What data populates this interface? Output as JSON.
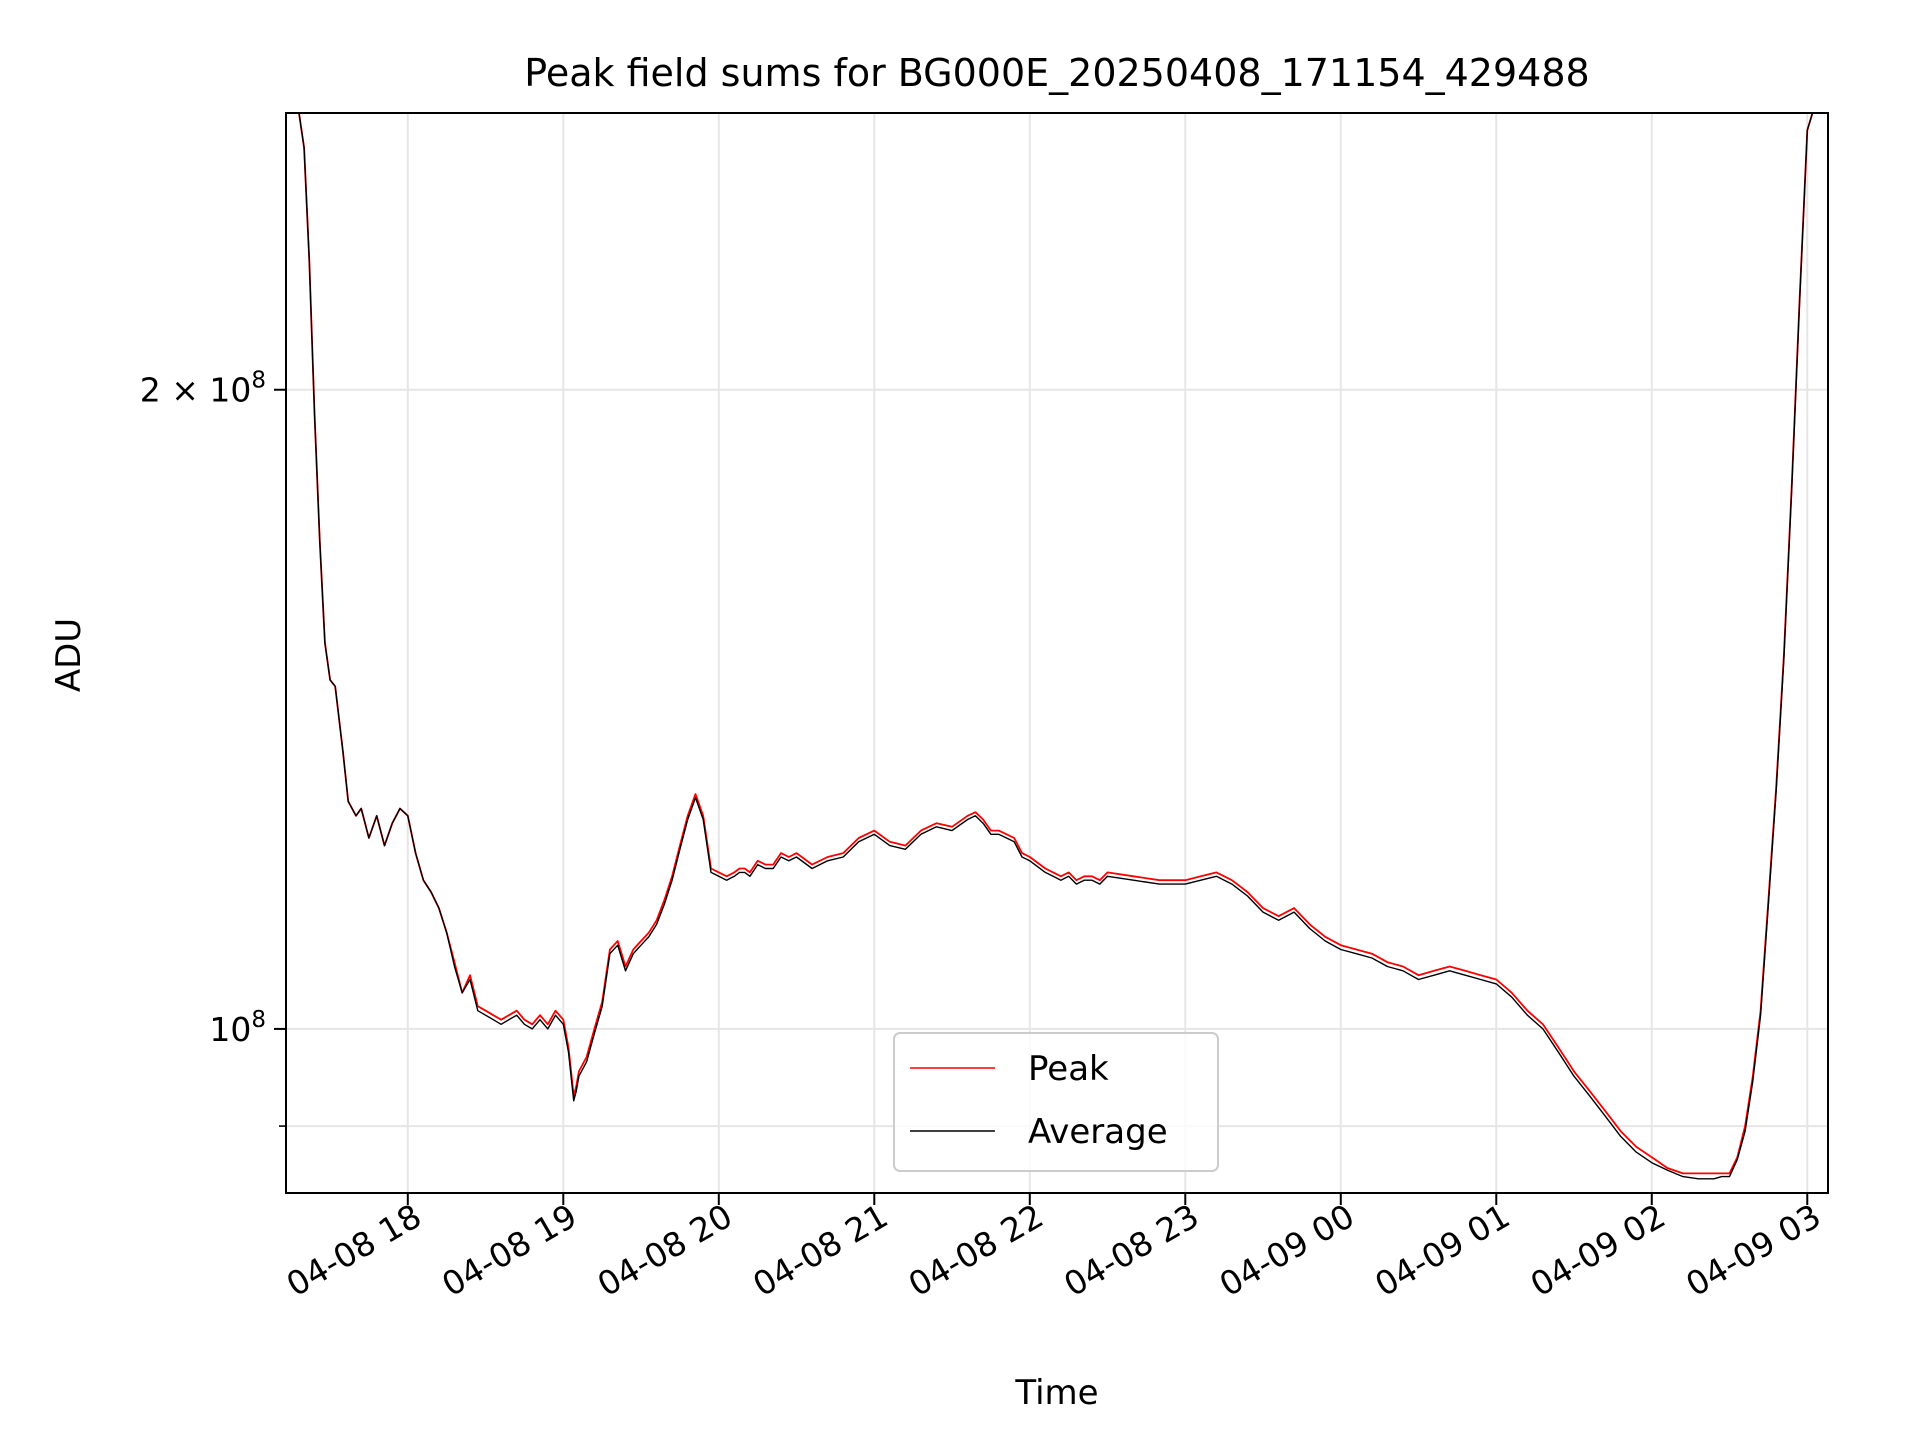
{
  "chart_data": {
    "type": "line",
    "title": "Peak field sums for BG000E_20250408_171154_429488",
    "xlabel": "Time",
    "ylabel": "ADU",
    "yscale": "log",
    "grid": true,
    "legend_position": "lower center",
    "xlim": [
      "2025-04-08 17:13",
      "2025-04-09 03:08"
    ],
    "ylim": [
      83700000.0,
      270000000.0
    ],
    "x_ticks": [
      {
        "label": "04-08 18",
        "value": "2025-04-08 18:00"
      },
      {
        "label": "04-08 19",
        "value": "2025-04-08 19:00"
      },
      {
        "label": "04-08 20",
        "value": "2025-04-08 20:00"
      },
      {
        "label": "04-08 21",
        "value": "2025-04-08 21:00"
      },
      {
        "label": "04-08 22",
        "value": "2025-04-08 22:00"
      },
      {
        "label": "04-08 23",
        "value": "2025-04-08 23:00"
      },
      {
        "label": "04-09 00",
        "value": "2025-04-09 00:00"
      },
      {
        "label": "04-09 01",
        "value": "2025-04-09 01:00"
      },
      {
        "label": "04-09 02",
        "value": "2025-04-09 02:00"
      },
      {
        "label": "04-09 03",
        "value": "2025-04-09 03:00"
      }
    ],
    "y_ticks": [
      {
        "mantissa": "2",
        "exponent": "8",
        "value": 200000000
      },
      {
        "mantissa": "",
        "exponent": "8",
        "value": 100000000
      }
    ],
    "y_minor_ticks": [
      90000000
    ],
    "series": [
      {
        "name": "Peak",
        "color": "#ff0000",
        "x": [
          "2025-04-08 17:13",
          "2025-04-08 17:18",
          "2025-04-08 17:20",
          "2025-04-08 17:22",
          "2025-04-08 17:24",
          "2025-04-08 17:26",
          "2025-04-08 17:28",
          "2025-04-08 17:30",
          "2025-04-08 17:32",
          "2025-04-08 17:35",
          "2025-04-08 17:37",
          "2025-04-08 17:40",
          "2025-04-08 17:42",
          "2025-04-08 17:45",
          "2025-04-08 17:48",
          "2025-04-08 17:51",
          "2025-04-08 17:54",
          "2025-04-08 17:57",
          "2025-04-08 18:00",
          "2025-04-08 18:03",
          "2025-04-08 18:06",
          "2025-04-08 18:09",
          "2025-04-08 18:12",
          "2025-04-08 18:15",
          "2025-04-08 18:18",
          "2025-04-08 18:21",
          "2025-04-08 18:24",
          "2025-04-08 18:27",
          "2025-04-08 18:30",
          "2025-04-08 18:33",
          "2025-04-08 18:36",
          "2025-04-08 18:39",
          "2025-04-08 18:42",
          "2025-04-08 18:45",
          "2025-04-08 18:48",
          "2025-04-08 18:51",
          "2025-04-08 18:54",
          "2025-04-08 18:57",
          "2025-04-08 19:00",
          "2025-04-08 19:02",
          "2025-04-08 19:04",
          "2025-04-08 19:05",
          "2025-04-08 19:06",
          "2025-04-08 19:09",
          "2025-04-08 19:12",
          "2025-04-08 19:15",
          "2025-04-08 19:18",
          "2025-04-08 19:21",
          "2025-04-08 19:24",
          "2025-04-08 19:27",
          "2025-04-08 19:30",
          "2025-04-08 19:33",
          "2025-04-08 19:36",
          "2025-04-08 19:39",
          "2025-04-08 19:42",
          "2025-04-08 19:45",
          "2025-04-08 19:48",
          "2025-04-08 19:51",
          "2025-04-08 19:54",
          "2025-04-08 19:57",
          "2025-04-08 20:00",
          "2025-04-08 20:03",
          "2025-04-08 20:06",
          "2025-04-08 20:08",
          "2025-04-08 20:10",
          "2025-04-08 20:12",
          "2025-04-08 20:15",
          "2025-04-08 20:18",
          "2025-04-08 20:21",
          "2025-04-08 20:24",
          "2025-04-08 20:27",
          "2025-04-08 20:30",
          "2025-04-08 20:36",
          "2025-04-08 20:42",
          "2025-04-08 20:48",
          "2025-04-08 20:54",
          "2025-04-08 21:00",
          "2025-04-08 21:06",
          "2025-04-08 21:12",
          "2025-04-08 21:18",
          "2025-04-08 21:24",
          "2025-04-08 21:30",
          "2025-04-08 21:36",
          "2025-04-08 21:39",
          "2025-04-08 21:42",
          "2025-04-08 21:45",
          "2025-04-08 21:48",
          "2025-04-08 21:51",
          "2025-04-08 21:54",
          "2025-04-08 21:57",
          "2025-04-08 22:00",
          "2025-04-08 22:06",
          "2025-04-08 22:09",
          "2025-04-08 22:12",
          "2025-04-08 22:15",
          "2025-04-08 22:18",
          "2025-04-08 22:21",
          "2025-04-08 22:24",
          "2025-04-08 22:27",
          "2025-04-08 22:30",
          "2025-04-08 22:40",
          "2025-04-08 22:50",
          "2025-04-08 23:00",
          "2025-04-08 23:06",
          "2025-04-08 23:12",
          "2025-04-08 23:18",
          "2025-04-08 23:24",
          "2025-04-08 23:30",
          "2025-04-08 23:36",
          "2025-04-08 23:42",
          "2025-04-08 23:48",
          "2025-04-08 23:54",
          "2025-04-09 00:00",
          "2025-04-09 00:06",
          "2025-04-09 00:12",
          "2025-04-09 00:18",
          "2025-04-09 00:24",
          "2025-04-09 00:30",
          "2025-04-09 00:36",
          "2025-04-09 00:42",
          "2025-04-09 00:48",
          "2025-04-09 00:54",
          "2025-04-09 01:00",
          "2025-04-09 01:06",
          "2025-04-09 01:12",
          "2025-04-09 01:18",
          "2025-04-09 01:24",
          "2025-04-09 01:30",
          "2025-04-09 01:36",
          "2025-04-09 01:42",
          "2025-04-09 01:48",
          "2025-04-09 01:54",
          "2025-04-09 02:00",
          "2025-04-09 02:06",
          "2025-04-09 02:12",
          "2025-04-09 02:18",
          "2025-04-09 02:24",
          "2025-04-09 02:27",
          "2025-04-09 02:30",
          "2025-04-09 02:33",
          "2025-04-09 02:36",
          "2025-04-09 02:39",
          "2025-04-09 02:42",
          "2025-04-09 02:45",
          "2025-04-09 02:48",
          "2025-04-09 02:51",
          "2025-04-09 02:54",
          "2025-04-09 02:57",
          "2025-04-09 03:00",
          "2025-04-09 03:02",
          "2025-04-09 03:04",
          "2025-04-09 03:08"
        ],
        "y": [
          270000000,
          270000000,
          260000000,
          230000000,
          195000000,
          170000000,
          152000000,
          146000000,
          145000000,
          135000000,
          128000000,
          126000000,
          127000000,
          123000000,
          126000000,
          122000000,
          125000000,
          127000000,
          126000000,
          121000000,
          117500000,
          116000000,
          114000000,
          111000000,
          107500000,
          104000000,
          106000000,
          102500000,
          102000000,
          101500000,
          101000000,
          101500000,
          102000000,
          101000000,
          100500000,
          101500000,
          100500000,
          102000000,
          101000000,
          98000000,
          93000000,
          94000000,
          95500000,
          97000000,
          100000000,
          103000000,
          109000000,
          110000000,
          107000000,
          109000000,
          110000000,
          111000000,
          112500000,
          115000000,
          118000000,
          122000000,
          126000000,
          129000000,
          126000000,
          119000000,
          118500000,
          118000000,
          118500000,
          119000000,
          119000000,
          118500000,
          120000000,
          119500000,
          119500000,
          121000000,
          120500000,
          121000000,
          119500000,
          120500000,
          121000000,
          123000000,
          124000000,
          122500000,
          122000000,
          124000000,
          125000000,
          124500000,
          126000000,
          126500000,
          125500000,
          124000000,
          124000000,
          123500000,
          123000000,
          121000000,
          120500000,
          119000000,
          118500000,
          118000000,
          118500000,
          117500000,
          118000000,
          118000000,
          117500000,
          118500000,
          118000000,
          117500000,
          117500000,
          118000000,
          118500000,
          117500000,
          116000000,
          114000000,
          113000000,
          114000000,
          112000000,
          110500000,
          109500000,
          109000000,
          108500000,
          107500000,
          107000000,
          106000000,
          106500000,
          107000000,
          106500000,
          106000000,
          105500000,
          104000000,
          102000000,
          100500000,
          98000000,
          95500000,
          93500000,
          91500000,
          89500000,
          88000000,
          87000000,
          86000000,
          85500000,
          85500000,
          85500000,
          85500000,
          85500000,
          87000000,
          90000000,
          95000000,
          102000000,
          115000000,
          130000000,
          150000000,
          180000000,
          220000000,
          265000000,
          270000000,
          270000000,
          270000000
        ]
      },
      {
        "name": "Average",
        "color": "#000000",
        "x": [
          "2025-04-08 17:13",
          "2025-04-08 17:18",
          "2025-04-08 17:20",
          "2025-04-08 17:22",
          "2025-04-08 17:24",
          "2025-04-08 17:26",
          "2025-04-08 17:28",
          "2025-04-08 17:30",
          "2025-04-08 17:32",
          "2025-04-08 17:35",
          "2025-04-08 17:37",
          "2025-04-08 17:40",
          "2025-04-08 17:42",
          "2025-04-08 17:45",
          "2025-04-08 17:48",
          "2025-04-08 17:51",
          "2025-04-08 17:54",
          "2025-04-08 17:57",
          "2025-04-08 18:00",
          "2025-04-08 18:03",
          "2025-04-08 18:06",
          "2025-04-08 18:09",
          "2025-04-08 18:12",
          "2025-04-08 18:15",
          "2025-04-08 18:18",
          "2025-04-08 18:21",
          "2025-04-08 18:24",
          "2025-04-08 18:27",
          "2025-04-08 18:30",
          "2025-04-08 18:33",
          "2025-04-08 18:36",
          "2025-04-08 18:39",
          "2025-04-08 18:42",
          "2025-04-08 18:45",
          "2025-04-08 18:48",
          "2025-04-08 18:51",
          "2025-04-08 18:54",
          "2025-04-08 18:57",
          "2025-04-08 19:00",
          "2025-04-08 19:02",
          "2025-04-08 19:04",
          "2025-04-08 19:05",
          "2025-04-08 19:06",
          "2025-04-08 19:09",
          "2025-04-08 19:12",
          "2025-04-08 19:15",
          "2025-04-08 19:18",
          "2025-04-08 19:21",
          "2025-04-08 19:24",
          "2025-04-08 19:27",
          "2025-04-08 19:30",
          "2025-04-08 19:33",
          "2025-04-08 19:36",
          "2025-04-08 19:39",
          "2025-04-08 19:42",
          "2025-04-08 19:45",
          "2025-04-08 19:48",
          "2025-04-08 19:51",
          "2025-04-08 19:54",
          "2025-04-08 19:57",
          "2025-04-08 20:00",
          "2025-04-08 20:03",
          "2025-04-08 20:06",
          "2025-04-08 20:08",
          "2025-04-08 20:10",
          "2025-04-08 20:12",
          "2025-04-08 20:15",
          "2025-04-08 20:18",
          "2025-04-08 20:21",
          "2025-04-08 20:24",
          "2025-04-08 20:27",
          "2025-04-08 20:30",
          "2025-04-08 20:36",
          "2025-04-08 20:42",
          "2025-04-08 20:48",
          "2025-04-08 20:54",
          "2025-04-08 21:00",
          "2025-04-08 21:06",
          "2025-04-08 21:12",
          "2025-04-08 21:18",
          "2025-04-08 21:24",
          "2025-04-08 21:30",
          "2025-04-08 21:36",
          "2025-04-08 21:39",
          "2025-04-08 21:42",
          "2025-04-08 21:45",
          "2025-04-08 21:48",
          "2025-04-08 21:51",
          "2025-04-08 21:54",
          "2025-04-08 21:57",
          "2025-04-08 22:00",
          "2025-04-08 22:06",
          "2025-04-08 22:09",
          "2025-04-08 22:12",
          "2025-04-08 22:15",
          "2025-04-08 22:18",
          "2025-04-08 22:21",
          "2025-04-08 22:24",
          "2025-04-08 22:27",
          "2025-04-08 22:30",
          "2025-04-08 22:40",
          "2025-04-08 22:50",
          "2025-04-08 23:00",
          "2025-04-08 23:06",
          "2025-04-08 23:12",
          "2025-04-08 23:18",
          "2025-04-08 23:24",
          "2025-04-08 23:30",
          "2025-04-08 23:36",
          "2025-04-08 23:42",
          "2025-04-08 23:48",
          "2025-04-08 23:54",
          "2025-04-09 00:00",
          "2025-04-09 00:06",
          "2025-04-09 00:12",
          "2025-04-09 00:18",
          "2025-04-09 00:24",
          "2025-04-09 00:30",
          "2025-04-09 00:36",
          "2025-04-09 00:42",
          "2025-04-09 00:48",
          "2025-04-09 00:54",
          "2025-04-09 01:00",
          "2025-04-09 01:06",
          "2025-04-09 01:12",
          "2025-04-09 01:18",
          "2025-04-09 01:24",
          "2025-04-09 01:30",
          "2025-04-09 01:36",
          "2025-04-09 01:42",
          "2025-04-09 01:48",
          "2025-04-09 01:54",
          "2025-04-09 02:00",
          "2025-04-09 02:06",
          "2025-04-09 02:12",
          "2025-04-09 02:18",
          "2025-04-09 02:24",
          "2025-04-09 02:27",
          "2025-04-09 02:30",
          "2025-04-09 02:33",
          "2025-04-09 02:36",
          "2025-04-09 02:39",
          "2025-04-09 02:42",
          "2025-04-09 02:45",
          "2025-04-09 02:48",
          "2025-04-09 02:51",
          "2025-04-09 02:54",
          "2025-04-09 02:57",
          "2025-04-09 03:00",
          "2025-04-09 03:02",
          "2025-04-09 03:04",
          "2025-04-09 03:08"
        ],
        "y": [
          270000000,
          270000000,
          260000000,
          230000000,
          195000000,
          170000000,
          152000000,
          146000000,
          145000000,
          135000000,
          128000000,
          126000000,
          127000000,
          123000000,
          126000000,
          122000000,
          125000000,
          127000000,
          126000000,
          121000000,
          117500000,
          116000000,
          114000000,
          111000000,
          107000000,
          104000000,
          105500000,
          102000000,
          101500000,
          101000000,
          100500000,
          101000000,
          101500000,
          100500000,
          100000000,
          101000000,
          100000000,
          101500000,
          100500000,
          97500000,
          92500000,
          93500000,
          95000000,
          96500000,
          99500000,
          102500000,
          108500000,
          109500000,
          106500000,
          108500000,
          109500000,
          110500000,
          112000000,
          114500000,
          117500000,
          121500000,
          125500000,
          128500000,
          125500000,
          118500000,
          118000000,
          117500000,
          118000000,
          118500000,
          118500000,
          118000000,
          119500000,
          119000000,
          119000000,
          120500000,
          120000000,
          120500000,
          119000000,
          120000000,
          120500000,
          122500000,
          123500000,
          122000000,
          121500000,
          123500000,
          124500000,
          124000000,
          125500000,
          126000000,
          125000000,
          123500000,
          123500000,
          123000000,
          122500000,
          120500000,
          120000000,
          118500000,
          118000000,
          117500000,
          118000000,
          117000000,
          117500000,
          117500000,
          117000000,
          118000000,
          117500000,
          117000000,
          117000000,
          117500000,
          118000000,
          117000000,
          115500000,
          113500000,
          112500000,
          113500000,
          111500000,
          110000000,
          109000000,
          108500000,
          108000000,
          107000000,
          106500000,
          105500000,
          106000000,
          106500000,
          106000000,
          105500000,
          105000000,
          103500000,
          101500000,
          100000000,
          97500000,
          95000000,
          93000000,
          91000000,
          89000000,
          87500000,
          86500000,
          85800000,
          85200000,
          85000000,
          85000000,
          85200000,
          85200000,
          86800000,
          89500000,
          94500000,
          101500000,
          114500000,
          129500000,
          149500000,
          179500000,
          219500000,
          265000000,
          270000000,
          270000000,
          270000000
        ]
      }
    ]
  }
}
